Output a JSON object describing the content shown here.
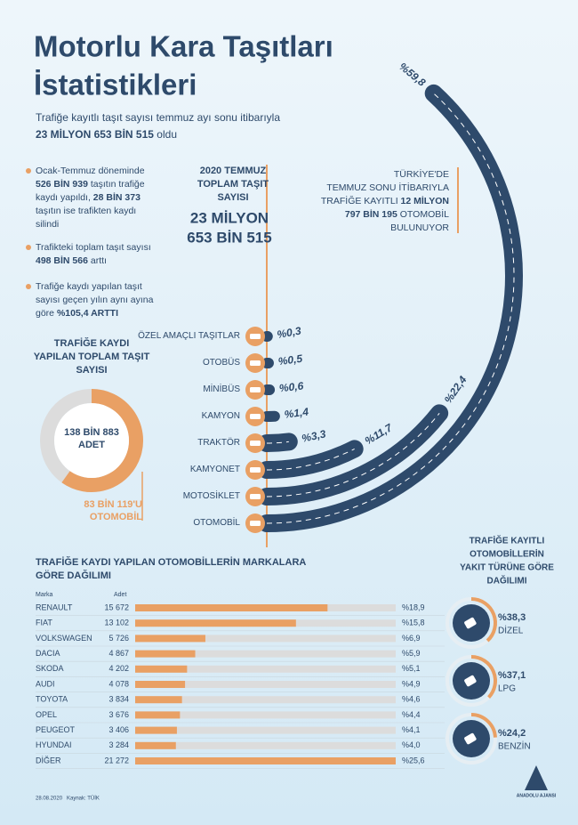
{
  "header": {
    "title": [
      "Motorlu Kara Taşıtları",
      "İstatistikleri"
    ],
    "subtitle": [
      [
        {
          "text": "Trafiğe kayıtlı taşıt sayısı temmuz ayı sonu itibarıyla",
          "bold": false
        }
      ],
      [
        {
          "text": "23 MİLYON 653 BİN 515",
          "bold": true
        },
        {
          "text": " oldu",
          "bold": false
        }
      ]
    ]
  },
  "bullets": [
    [
      [
        {
          "text": "Ocak-Temmuz döneminde",
          "bold": false
        }
      ],
      [
        {
          "text": "526 BİN 939",
          "bold": true
        },
        {
          "text": " taşıtın trafiğe",
          "bold": false
        }
      ],
      [
        {
          "text": "kaydı yapıldı, ",
          "bold": false
        },
        {
          "text": "28 BİN 373",
          "bold": true
        }
      ],
      [
        {
          "text": "taşıtın ise trafikten kaydı",
          "bold": false
        }
      ],
      [
        {
          "text": "silindi",
          "bold": false
        }
      ]
    ],
    [
      [
        {
          "text": "Trafikteki toplam taşıt sayısı",
          "bold": false
        }
      ],
      [
        {
          "text": "498 BİN 566",
          "bold": true
        },
        {
          "text": " arttı",
          "bold": false
        }
      ]
    ],
    [
      [
        {
          "text": "Trafiğe kaydı yapılan taşıt",
          "bold": false
        }
      ],
      [
        {
          "text": "sayısı geçen yılın aynı ayına",
          "bold": false
        }
      ],
      [
        {
          "text": "göre ",
          "bold": false
        },
        {
          "text": "%105,4 ARTTI",
          "bold": true
        }
      ]
    ]
  ],
  "total_box": {
    "label": [
      "2020 TEMMUZ",
      "TOPLAM TAŞIT",
      "SAYISI"
    ],
    "value": [
      "23 MİLYON",
      "653 BİN 515"
    ]
  },
  "car_note": [
    [
      {
        "text": "TÜRKİYE'DE",
        "bold": false
      }
    ],
    [
      {
        "text": "TEMMUZ SONU İTİBARIYLA",
        "bold": false
      }
    ],
    [
      {
        "text": "TRAFİĞE KAYITLI ",
        "bold": false
      },
      {
        "text": "12 MİLYON",
        "bold": true
      }
    ],
    [
      {
        "text": "797 BİN 195",
        "bold": true
      },
      {
        "text": " OTOMOBİL",
        "bold": false
      }
    ],
    [
      {
        "text": "BULUNUYOR",
        "bold": false
      }
    ]
  ],
  "chart_data": [
    {
      "type": "radial_bar",
      "categories": [
        "ÖZEL AMAÇLI TAŞITLAR",
        "OTOBÜS",
        "MİNİBÜS",
        "KAMYON",
        "TRAKTÖR",
        "KAMYONET",
        "MOTOSİKLET",
        "OTOMOBİL"
      ],
      "values": [
        0.3,
        0.5,
        0.6,
        1.4,
        3.3,
        11.7,
        22.4,
        59.8
      ],
      "value_labels": [
        "%0,3",
        "%0,5",
        "%0,6",
        "%1,4",
        "%3,3",
        "%11,7",
        "%22,4",
        "%59,8"
      ],
      "color": "#2e4a6b",
      "label_color": "#e9a064"
    },
    {
      "type": "donut",
      "title": [
        "TRAFİĞE KAYDI",
        "YAPILAN TOPLAM TAŞIT",
        "SAYISI"
      ],
      "values": [
        138883,
        83119
      ],
      "value_labels": [
        "138 BİN 883 ADET",
        "83 BİN 119'U OTOMOBİL"
      ],
      "colors": [
        "#dcdcdc",
        "#e9a064"
      ]
    },
    {
      "type": "bar",
      "title": [
        "TRAFİĞE KAYDI YAPILAN OTOMOBİLLERİN MARKALARA",
        "GÖRE DAĞILIMI"
      ],
      "column_labels": [
        "Marka",
        "Adet"
      ],
      "categories": [
        "RENAULT",
        "FIAT",
        "VOLKSWAGEN",
        "DACIA",
        "SKODA",
        "AUDI",
        "TOYOTA",
        "OPEL",
        "PEUGEOT",
        "HYUNDAI",
        "DİĞER"
      ],
      "counts": [
        "15 672",
        "13 102",
        "5 726",
        "4 867",
        "4 202",
        "4 078",
        "3 834",
        "3 676",
        "3 406",
        "3 284",
        "21 272"
      ],
      "values": [
        18.9,
        15.8,
        6.9,
        5.9,
        5.1,
        4.9,
        4.6,
        4.4,
        4.1,
        4.0,
        25.6
      ],
      "value_labels": [
        "%18,9",
        "%15,8",
        "%6,9",
        "%5,9",
        "%5,1",
        "%4,9",
        "%4,6",
        "%4,4",
        "%4,1",
        "%4,0",
        "%25,6"
      ],
      "xlim": [
        0,
        25.6
      ],
      "color": "#e9a064",
      "track_color": "#dcdcdc"
    },
    {
      "type": "gauge",
      "title": [
        "TRAFİĞE KAYITLI",
        "OTOMOBİLLERİN",
        "YAKIT TÜRÜNE GÖRE",
        "DAĞILIMI"
      ],
      "categories": [
        "DİZEL",
        "LPG",
        "BENZİN"
      ],
      "values": [
        38.3,
        37.1,
        24.2
      ],
      "value_labels": [
        "%38,3",
        "%37,1",
        "%24,2"
      ],
      "ylim": [
        0,
        100
      ],
      "color": "#e9a064"
    }
  ],
  "footer": {
    "date": "28.08.2020",
    "source": "Kaynak: TÜİK",
    "logo": "ANADOLU AJANSI"
  }
}
